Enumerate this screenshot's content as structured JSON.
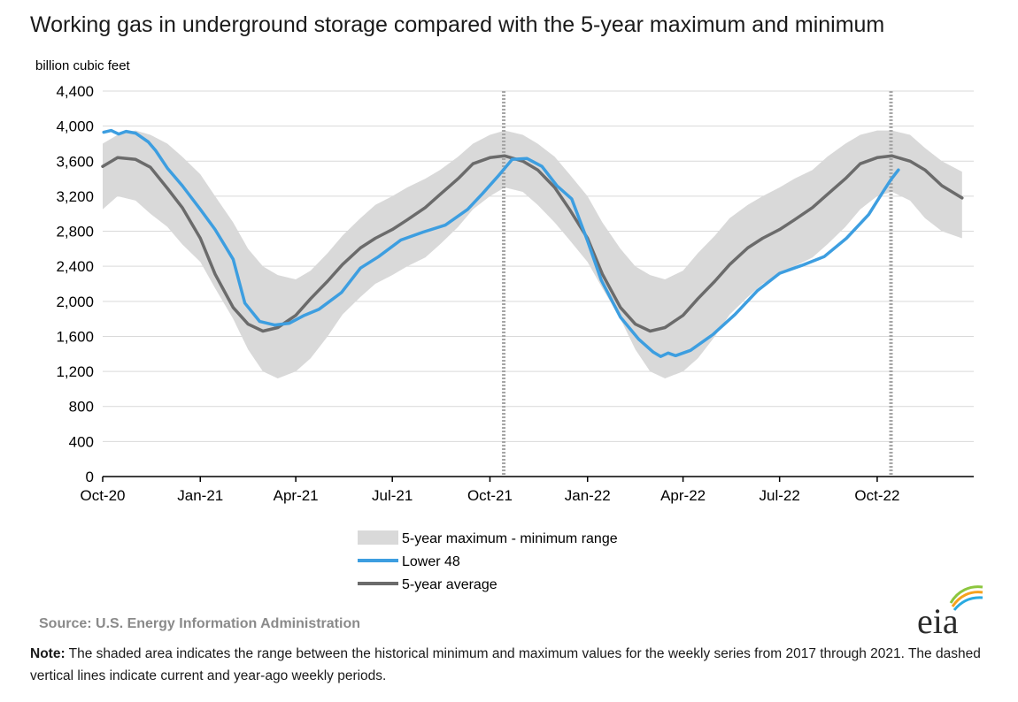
{
  "title": "Working gas in underground  storage compared with the 5-year maximum  and minimum",
  "source": "Source:  U.S. Energy Information Administration",
  "note_label": "Note:",
  "note_text": " The shaded area indicates the range between the historical minimum and maximum values for the weekly series from 2017 through 2021. The dashed vertical lines indicate current and year-ago weekly periods.",
  "logo_text": "eia",
  "colors": {
    "lower48": "#3d9ee0",
    "average": "#6b6b6b",
    "range": "#d9d9d9",
    "grid": "#d9d9d9",
    "dashed": "#a6a6a6"
  },
  "chart_data": {
    "type": "line",
    "title": "Working gas in underground  storage compared with the 5-year maximum  and minimum",
    "ylabel": "billion cubic feet",
    "xlabel": "",
    "ylim": [
      0,
      4400
    ],
    "yticks": [
      0,
      400,
      800,
      1200,
      1600,
      2000,
      2400,
      2800,
      3200,
      3600,
      4000,
      4400
    ],
    "ytick_labels": [
      "0",
      "400",
      "800",
      "1,200",
      "1,600",
      "2,000",
      "2,400",
      "2,800",
      "3,200",
      "3,600",
      "4,000",
      "4,400"
    ],
    "xlim": [
      "2020-10-01",
      "2022-12-31"
    ],
    "xticks": [
      "2020-10-01",
      "2021-01-01",
      "2021-04-01",
      "2021-07-01",
      "2021-10-01",
      "2022-01-01",
      "2022-04-01",
      "2022-07-01",
      "2022-10-01"
    ],
    "xtick_labels": [
      "Oct-20",
      "Jan-21",
      "Apr-21",
      "Jul-21",
      "Oct-21",
      "Jan-22",
      "Apr-22",
      "Jul-22",
      "Oct-22"
    ],
    "grid": "horizontal",
    "legend_position": "bottom",
    "dashed_vlines": [
      "2021-10-14",
      "2022-10-14"
    ],
    "legend": [
      "5-year maximum - minimum range",
      "Lower 48",
      "5-year average"
    ],
    "range_x": [
      "2020-10-01",
      "2020-10-15",
      "2020-11-01",
      "2020-11-15",
      "2020-12-01",
      "2020-12-15",
      "2021-01-01",
      "2021-01-15",
      "2021-02-01",
      "2021-02-15",
      "2021-03-01",
      "2021-03-15",
      "2021-04-01",
      "2021-04-15",
      "2021-05-01",
      "2021-05-15",
      "2021-06-01",
      "2021-06-15",
      "2021-07-01",
      "2021-07-15",
      "2021-08-01",
      "2021-08-15",
      "2021-09-01",
      "2021-09-15",
      "2021-10-01",
      "2021-10-15",
      "2021-11-01",
      "2021-11-15",
      "2021-12-01",
      "2021-12-15",
      "2022-01-01",
      "2022-01-15",
      "2022-02-01",
      "2022-02-15",
      "2022-03-01",
      "2022-03-15",
      "2022-04-01",
      "2022-04-15",
      "2022-05-01",
      "2022-05-15",
      "2022-06-01",
      "2022-06-15",
      "2022-07-01",
      "2022-07-15",
      "2022-08-01",
      "2022-08-15",
      "2022-09-01",
      "2022-09-15",
      "2022-10-01",
      "2022-10-15",
      "2022-11-01",
      "2022-11-15",
      "2022-12-01",
      "2022-12-20"
    ],
    "range_max": [
      3800,
      3900,
      3950,
      3900,
      3800,
      3650,
      3450,
      3200,
      2900,
      2600,
      2400,
      2300,
      2250,
      2350,
      2550,
      2750,
      2950,
      3100,
      3200,
      3300,
      3400,
      3500,
      3650,
      3800,
      3900,
      3950,
      3900,
      3800,
      3650,
      3450,
      3200,
      2900,
      2600,
      2400,
      2300,
      2250,
      2350,
      2550,
      2750,
      2950,
      3100,
      3200,
      3300,
      3400,
      3500,
      3650,
      3800,
      3900,
      3950,
      3950,
      3900,
      3750,
      3600,
      3480
    ],
    "range_min": [
      3050,
      3200,
      3150,
      3000,
      2850,
      2650,
      2450,
      2150,
      1800,
      1450,
      1200,
      1120,
      1200,
      1350,
      1600,
      1850,
      2050,
      2200,
      2300,
      2400,
      2500,
      2650,
      2850,
      3050,
      3200,
      3300,
      3250,
      3100,
      2900,
      2700,
      2450,
      2150,
      1800,
      1450,
      1200,
      1120,
      1200,
      1350,
      1600,
      1850,
      2050,
      2200,
      2300,
      2400,
      2500,
      2650,
      2850,
      3050,
      3200,
      3250,
      3150,
      2950,
      2800,
      2720
    ],
    "series": [
      {
        "name": "Lower 48",
        "x": [
          "2020-10-02",
          "2020-10-09",
          "2020-10-16",
          "2020-10-23",
          "2020-11-01",
          "2020-11-13",
          "2020-11-20",
          "2020-12-01",
          "2020-12-15",
          "2021-01-01",
          "2021-01-15",
          "2021-02-01",
          "2021-02-12",
          "2021-02-26",
          "2021-03-12",
          "2021-03-26",
          "2021-04-09",
          "2021-04-23",
          "2021-05-14",
          "2021-06-01",
          "2021-06-18",
          "2021-07-09",
          "2021-07-30",
          "2021-08-20",
          "2021-09-10",
          "2021-09-24",
          "2021-10-08",
          "2021-10-22",
          "2021-11-05",
          "2021-11-19",
          "2021-12-03",
          "2021-12-17",
          "2022-01-01",
          "2022-01-14",
          "2022-02-01",
          "2022-02-18",
          "2022-03-04",
          "2022-03-11",
          "2022-03-18",
          "2022-03-25",
          "2022-04-08",
          "2022-04-29",
          "2022-05-20",
          "2022-06-10",
          "2022-07-01",
          "2022-07-22",
          "2022-08-12",
          "2022-09-02",
          "2022-09-23",
          "2022-10-07",
          "2022-10-14",
          "2022-10-21"
        ],
        "values": [
          3930,
          3950,
          3910,
          3940,
          3920,
          3820,
          3720,
          3520,
          3320,
          3050,
          2820,
          2480,
          1980,
          1770,
          1730,
          1750,
          1840,
          1910,
          2100,
          2380,
          2510,
          2700,
          2790,
          2870,
          3050,
          3230,
          3420,
          3620,
          3630,
          3540,
          3320,
          3170,
          2690,
          2240,
          1820,
          1570,
          1420,
          1370,
          1410,
          1380,
          1440,
          1620,
          1850,
          2120,
          2320,
          2410,
          2510,
          2720,
          2990,
          3260,
          3390,
          3500
        ]
      },
      {
        "name": "5-year average",
        "x": [
          "2020-10-01",
          "2020-10-15",
          "2020-11-01",
          "2020-11-15",
          "2020-12-01",
          "2020-12-15",
          "2021-01-01",
          "2021-01-15",
          "2021-02-01",
          "2021-02-15",
          "2021-03-01",
          "2021-03-15",
          "2021-04-01",
          "2021-04-15",
          "2021-05-01",
          "2021-05-15",
          "2021-06-01",
          "2021-06-15",
          "2021-07-01",
          "2021-07-15",
          "2021-08-01",
          "2021-08-15",
          "2021-09-01",
          "2021-09-15",
          "2021-10-01",
          "2021-10-15",
          "2021-11-01",
          "2021-11-15",
          "2021-12-01",
          "2021-12-15",
          "2022-01-01",
          "2022-01-15",
          "2022-02-01",
          "2022-02-15",
          "2022-03-01",
          "2022-03-15",
          "2022-04-01",
          "2022-04-15",
          "2022-05-01",
          "2022-05-15",
          "2022-06-01",
          "2022-06-15",
          "2022-07-01",
          "2022-07-15",
          "2022-08-01",
          "2022-08-15",
          "2022-09-01",
          "2022-09-15",
          "2022-10-01",
          "2022-10-15",
          "2022-11-01",
          "2022-11-15",
          "2022-12-01",
          "2022-12-20"
        ],
        "values": [
          3540,
          3640,
          3620,
          3530,
          3290,
          3070,
          2720,
          2310,
          1930,
          1740,
          1660,
          1700,
          1840,
          2030,
          2230,
          2420,
          2610,
          2720,
          2820,
          2930,
          3070,
          3220,
          3400,
          3570,
          3640,
          3660,
          3600,
          3500,
          3300,
          3050,
          2720,
          2310,
          1930,
          1740,
          1660,
          1700,
          1840,
          2030,
          2230,
          2420,
          2610,
          2720,
          2820,
          2930,
          3070,
          3220,
          3400,
          3570,
          3640,
          3660,
          3600,
          3500,
          3320,
          3180
        ]
      }
    ]
  }
}
